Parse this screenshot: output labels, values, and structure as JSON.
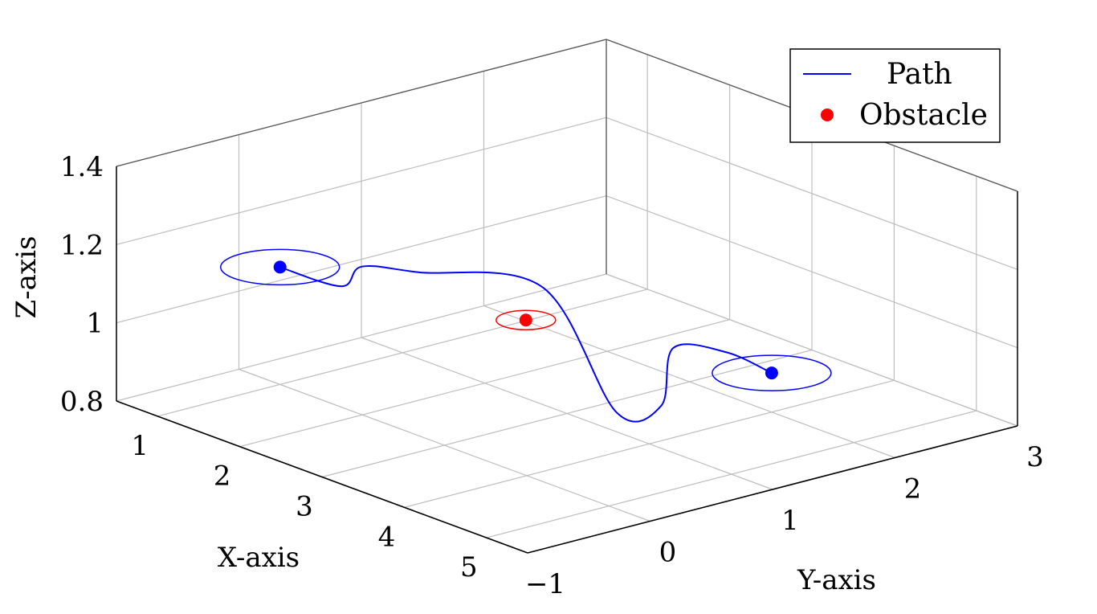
{
  "chart_data": {
    "type": "line3d",
    "title": "",
    "xlabel": "X-axis",
    "ylabel": "Y-axis",
    "zlabel": "Z-axis",
    "xlim": [
      0.5,
      5.5
    ],
    "ylim": [
      -1,
      3
    ],
    "zlim": [
      0.8,
      1.4
    ],
    "xticks": [
      "1",
      "2",
      "3",
      "4",
      "5"
    ],
    "yticks": [
      "−1",
      "0",
      "1",
      "2",
      "3"
    ],
    "zticks": [
      "0.8",
      "1",
      "1.2",
      "1.4"
    ],
    "grid": true,
    "legend_position": "top-right",
    "series": [
      {
        "name": "Path",
        "type": "line",
        "color": "#0000ff",
        "x": [
          1.0,
          1.3,
          1.4,
          1.8,
          2.7,
          3.6,
          3.7,
          3.4,
          3.6,
          4.0
        ],
        "y": [
          0.0,
          0.3,
          0.4,
          0.6,
          1.0,
          1.0,
          1.3,
          1.6,
          1.9,
          2.0
        ],
        "z": [
          1.1,
          1.05,
          1.1,
          1.1,
          1.1,
          0.85,
          0.85,
          0.95,
          0.93,
          0.9
        ]
      },
      {
        "name": "Obstacle",
        "type": "scatter",
        "color": "#ff0000",
        "x": [
          2.5
        ],
        "y": [
          1.0
        ],
        "z": [
          1.0
        ]
      }
    ],
    "endpoints": {
      "color": "#0000ff",
      "points": [
        {
          "x": 1.0,
          "y": 0.0,
          "z": 1.1
        },
        {
          "x": 4.0,
          "y": 2.0,
          "z": 0.9
        }
      ]
    }
  }
}
